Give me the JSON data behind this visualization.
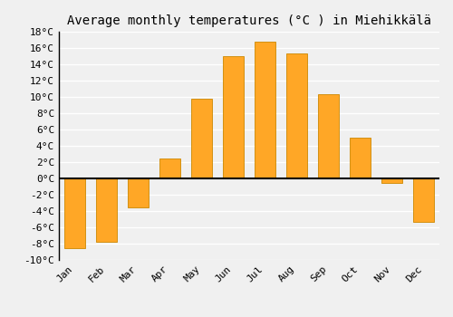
{
  "title": "Average monthly temperatures (°C ) in Miehikkälä",
  "months": [
    "Jan",
    "Feb",
    "Mar",
    "Apr",
    "May",
    "Jun",
    "Jul",
    "Aug",
    "Sep",
    "Oct",
    "Nov",
    "Dec"
  ],
  "values": [
    -8.5,
    -7.8,
    -3.5,
    2.5,
    9.8,
    15.0,
    16.8,
    15.3,
    10.3,
    5.0,
    -0.5,
    -5.3
  ],
  "bar_color": "#FFA726",
  "bar_edge_color": "#CC8800",
  "ylim": [
    -10,
    18
  ],
  "yticks": [
    -10,
    -8,
    -6,
    -4,
    -2,
    0,
    2,
    4,
    6,
    8,
    10,
    12,
    14,
    16,
    18
  ],
  "ytick_labels": [
    "-10°C",
    "-8°C",
    "-6°C",
    "-4°C",
    "-2°C",
    "0°C",
    "2°C",
    "4°C",
    "6°C",
    "8°C",
    "10°C",
    "12°C",
    "14°C",
    "16°C",
    "18°C"
  ],
  "background_color": "#f0f0f0",
  "grid_color": "#ffffff",
  "title_fontsize": 10,
  "tick_fontsize": 8,
  "bar_width": 0.65
}
